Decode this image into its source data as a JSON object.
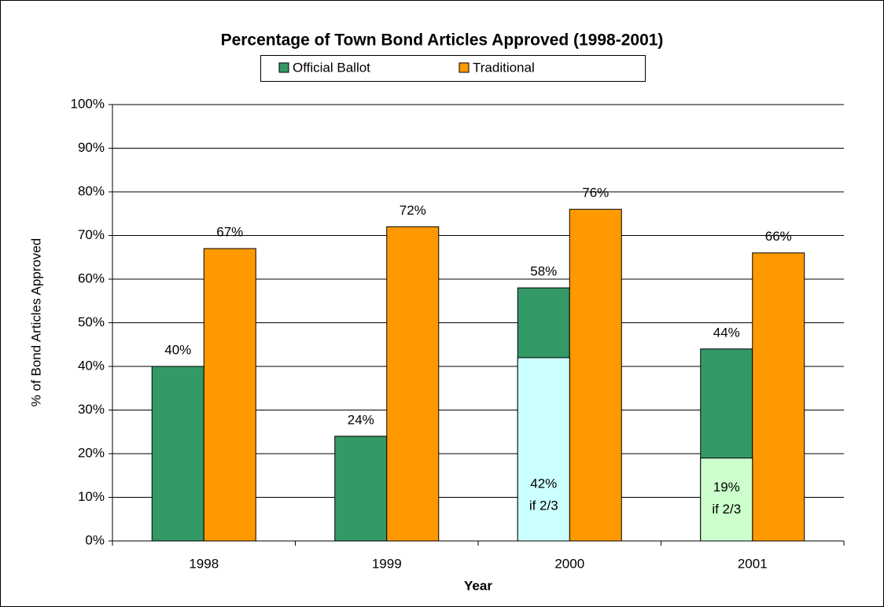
{
  "chart_data": {
    "type": "bar",
    "title": "Percentage of Town Bond Articles Approved (1998-2001)",
    "x_label": "Year",
    "y_label": "% of Bond Articles Approved",
    "categories": [
      "1998",
      "1999",
      "2000",
      "2001"
    ],
    "series": [
      {
        "name": "Official Ballot",
        "color": "#339966",
        "values": [
          40,
          24,
          58,
          44
        ],
        "value_labels": [
          "40%",
          "24%",
          "58%",
          "44%"
        ]
      },
      {
        "name": "Traditional",
        "color": "#ff9900",
        "values": [
          67,
          72,
          76,
          66
        ],
        "value_labels": [
          "67%",
          "72%",
          "76%",
          "66%"
        ]
      }
    ],
    "overlays": [
      {
        "category": "2000",
        "value": 42,
        "label": "42%",
        "note": "if 2/3",
        "color": "#ccffff"
      },
      {
        "category": "2001",
        "value": 19,
        "label": "19%",
        "note": "if 2/3",
        "color": "#ccffcc"
      }
    ],
    "ylim": [
      0,
      100
    ],
    "yticks": [
      {
        "value": 0,
        "label": "0%"
      },
      {
        "value": 10,
        "label": "10%"
      },
      {
        "value": 20,
        "label": "20%"
      },
      {
        "value": 30,
        "label": "30%"
      },
      {
        "value": 40,
        "label": "40%"
      },
      {
        "value": 50,
        "label": "50%"
      },
      {
        "value": 60,
        "label": "60%"
      },
      {
        "value": 70,
        "label": "70%"
      },
      {
        "value": 80,
        "label": "80%"
      },
      {
        "value": 90,
        "label": "90%"
      },
      {
        "value": 100,
        "label": "100%"
      }
    ],
    "grid": true,
    "legend": "top"
  }
}
